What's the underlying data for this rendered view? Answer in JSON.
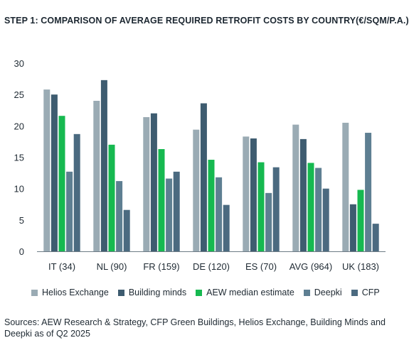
{
  "title": "STEP 1: COMPARISON OF AVERAGE REQUIRED RETROFIT COSTS BY COUNTRY(€/SQM/P.A.)",
  "source": "Sources: AEW Research & Strategy, CFP Green Buildings, Helios Exchange, Building Minds and Deepki as of Q2 2025",
  "chart_data": {
    "type": "bar",
    "title": "STEP 1: COMPARISON OF AVERAGE REQUIRED RETROFIT COSTS BY COUNTRY(€/SQM/P.A.)",
    "categories": [
      "IT (34)",
      "NL (90)",
      "FR (159)",
      "DE (120)",
      "ES (70)",
      "AVG (964)",
      "UK (183)"
    ],
    "ylim": [
      0,
      30
    ],
    "yticks": [
      0,
      5,
      10,
      15,
      20,
      25,
      30
    ],
    "grid": false,
    "legend_position": "bottom",
    "series": [
      {
        "name": "Helios Exchange",
        "color": "#9aabb4",
        "values": [
          25.8,
          24.0,
          21.4,
          19.4,
          18.3,
          20.2,
          20.5
        ]
      },
      {
        "name": "Building minds",
        "color": "#3e5c70",
        "values": [
          25.0,
          27.3,
          22.0,
          23.6,
          18.0,
          17.9,
          7.5
        ]
      },
      {
        "name": "AEW median estimate",
        "color": "#16b950",
        "values": [
          21.6,
          17.0,
          16.3,
          14.6,
          14.2,
          14.1,
          9.8
        ]
      },
      {
        "name": "Deepki",
        "color": "#5e7f92",
        "values": [
          12.7,
          11.2,
          11.6,
          11.8,
          9.3,
          13.3,
          18.9
        ]
      },
      {
        "name": "CFP",
        "color": "#4b6a80",
        "values": [
          18.7,
          6.6,
          12.7,
          7.4,
          13.4,
          10.0,
          4.4
        ]
      }
    ]
  }
}
